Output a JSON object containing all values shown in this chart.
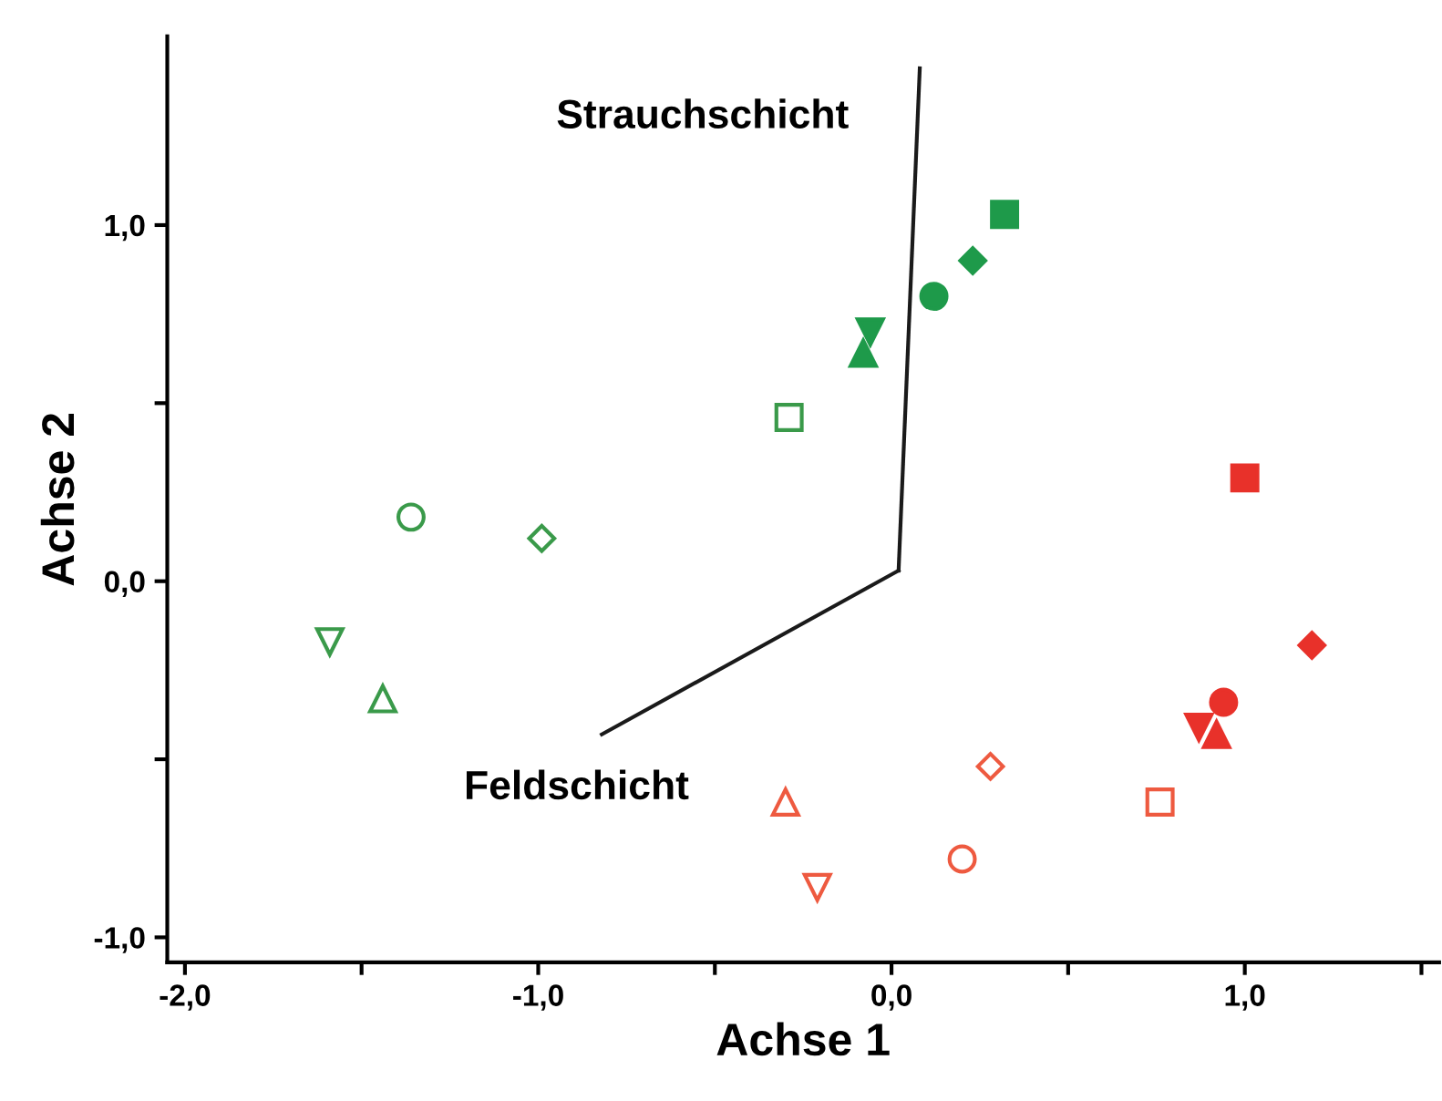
{
  "chart_data": {
    "type": "scatter",
    "xlabel": "Achse 1",
    "ylabel": "Achse 2",
    "xlim": [
      -2.05,
      1.55
    ],
    "ylim": [
      -1.07,
      1.53
    ],
    "xticks": [
      {
        "value": -2.0,
        "label": "-2,0"
      },
      {
        "value": -1.5,
        "label": null
      },
      {
        "value": -1.0,
        "label": "-1,0"
      },
      {
        "value": -0.5,
        "label": null
      },
      {
        "value": 0.0,
        "label": "0,0"
      },
      {
        "value": 0.5,
        "label": null
      },
      {
        "value": 1.0,
        "label": "1,0"
      },
      {
        "value": 1.5,
        "label": null
      }
    ],
    "yticks": [
      {
        "value": -1.0,
        "label": "-1,0"
      },
      {
        "value": -0.5,
        "label": null
      },
      {
        "value": 0.0,
        "label": "0,0"
      },
      {
        "value": 0.5,
        "label": null
      },
      {
        "value": 1.0,
        "label": "1,0"
      }
    ],
    "grid": false,
    "legend": false,
    "series": [
      {
        "color": "#1e9a4a",
        "marker": "square",
        "x": [
          0.32
        ],
        "values": [
          1.03
        ]
      },
      {
        "color": "#1e9a4a",
        "marker": "diamond",
        "x": [
          0.23
        ],
        "values": [
          0.9
        ]
      },
      {
        "color": "#1e9a4a",
        "marker": "circle",
        "x": [
          0.12
        ],
        "values": [
          0.8
        ]
      },
      {
        "color": "#1e9a4a",
        "marker": "triangle-down",
        "x": [
          -0.06
        ],
        "values": [
          0.7
        ]
      },
      {
        "color": "#1e9a4a",
        "marker": "triangle",
        "x": [
          -0.08
        ],
        "values": [
          0.64
        ]
      },
      {
        "color": "#3a9a4a",
        "marker": "square-open",
        "x": [
          -0.29
        ],
        "values": [
          0.46
        ]
      },
      {
        "color": "#3a9a4a",
        "marker": "diamond-open",
        "x": [
          -0.99
        ],
        "values": [
          0.12
        ]
      },
      {
        "color": "#3a9a4a",
        "marker": "circle-open",
        "x": [
          -1.36
        ],
        "values": [
          0.18
        ]
      },
      {
        "color": "#3a9a4a",
        "marker": "triangle-down-open",
        "x": [
          -1.59
        ],
        "values": [
          -0.17
        ]
      },
      {
        "color": "#3a9a4a",
        "marker": "triangle-open",
        "x": [
          -1.44
        ],
        "values": [
          -0.33
        ]
      },
      {
        "color": "#e8312a",
        "marker": "square",
        "x": [
          1.0
        ],
        "values": [
          0.29
        ]
      },
      {
        "color": "#e8312a",
        "marker": "diamond",
        "x": [
          1.19
        ],
        "values": [
          -0.18
        ]
      },
      {
        "color": "#e8312a",
        "marker": "circle",
        "x": [
          0.94
        ],
        "values": [
          -0.34
        ]
      },
      {
        "color": "#e8312a",
        "marker": "triangle-down",
        "x": [
          0.87
        ],
        "values": [
          -0.41
        ]
      },
      {
        "color": "#e8312a",
        "marker": "triangle",
        "x": [
          0.92
        ],
        "values": [
          -0.43
        ]
      },
      {
        "color": "#ee5a40",
        "marker": "square-open",
        "x": [
          0.76
        ],
        "values": [
          -0.62
        ]
      },
      {
        "color": "#ee5a40",
        "marker": "diamond-open",
        "x": [
          0.28
        ],
        "values": [
          -0.52
        ]
      },
      {
        "color": "#ee5a40",
        "marker": "circle-open",
        "x": [
          0.2
        ],
        "values": [
          -0.78
        ]
      },
      {
        "color": "#ee5a40",
        "marker": "triangle-down-open",
        "x": [
          -0.21
        ],
        "values": [
          -0.86
        ]
      },
      {
        "color": "#ee5a40",
        "marker": "triangle-open",
        "x": [
          -0.3
        ],
        "values": [
          -0.62
        ]
      },
      {
        "type": "line",
        "name": "Strauchschicht",
        "color": "#1a1a1a",
        "marker": "none",
        "x": [
          0.02,
          0.08
        ],
        "values": [
          0.03,
          1.44
        ]
      },
      {
        "type": "line",
        "name": "Feldschicht",
        "color": "#1a1a1a",
        "marker": "none",
        "x": [
          0.02,
          -0.82
        ],
        "values": [
          0.03,
          -0.43
        ]
      }
    ]
  }
}
